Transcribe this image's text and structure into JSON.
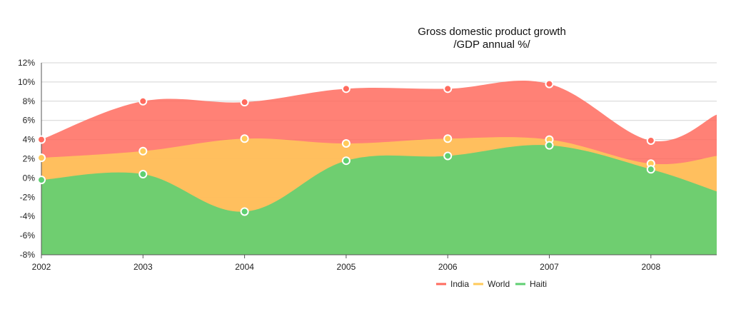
{
  "chart_data": {
    "type": "area",
    "title": "Gross domestic product growth",
    "subtitle": "/GDP annual %/",
    "x": [
      "2002",
      "2003",
      "2004",
      "2005",
      "2006",
      "2007",
      "2008"
    ],
    "y_ticks": [
      "12%",
      "10%",
      "8%",
      "6%",
      "4%",
      "2%",
      "0%",
      "-2%",
      "-4%",
      "-6%",
      "-8%"
    ],
    "ylim": [
      -8,
      12
    ],
    "grid": true,
    "legend_position": "bottom-center",
    "series": [
      {
        "name": "India",
        "color": "#ff6b5e",
        "values": [
          4.0,
          8.0,
          7.9,
          9.3,
          9.3,
          9.8,
          3.9
        ]
      },
      {
        "name": "World",
        "color": "#ffca5a",
        "values": [
          2.1,
          2.8,
          4.1,
          3.6,
          4.1,
          4.0,
          1.5
        ]
      },
      {
        "name": "Haiti",
        "color": "#5fcf72",
        "values": [
          -0.2,
          0.4,
          -3.5,
          1.8,
          2.3,
          3.4,
          0.9
        ]
      }
    ]
  }
}
